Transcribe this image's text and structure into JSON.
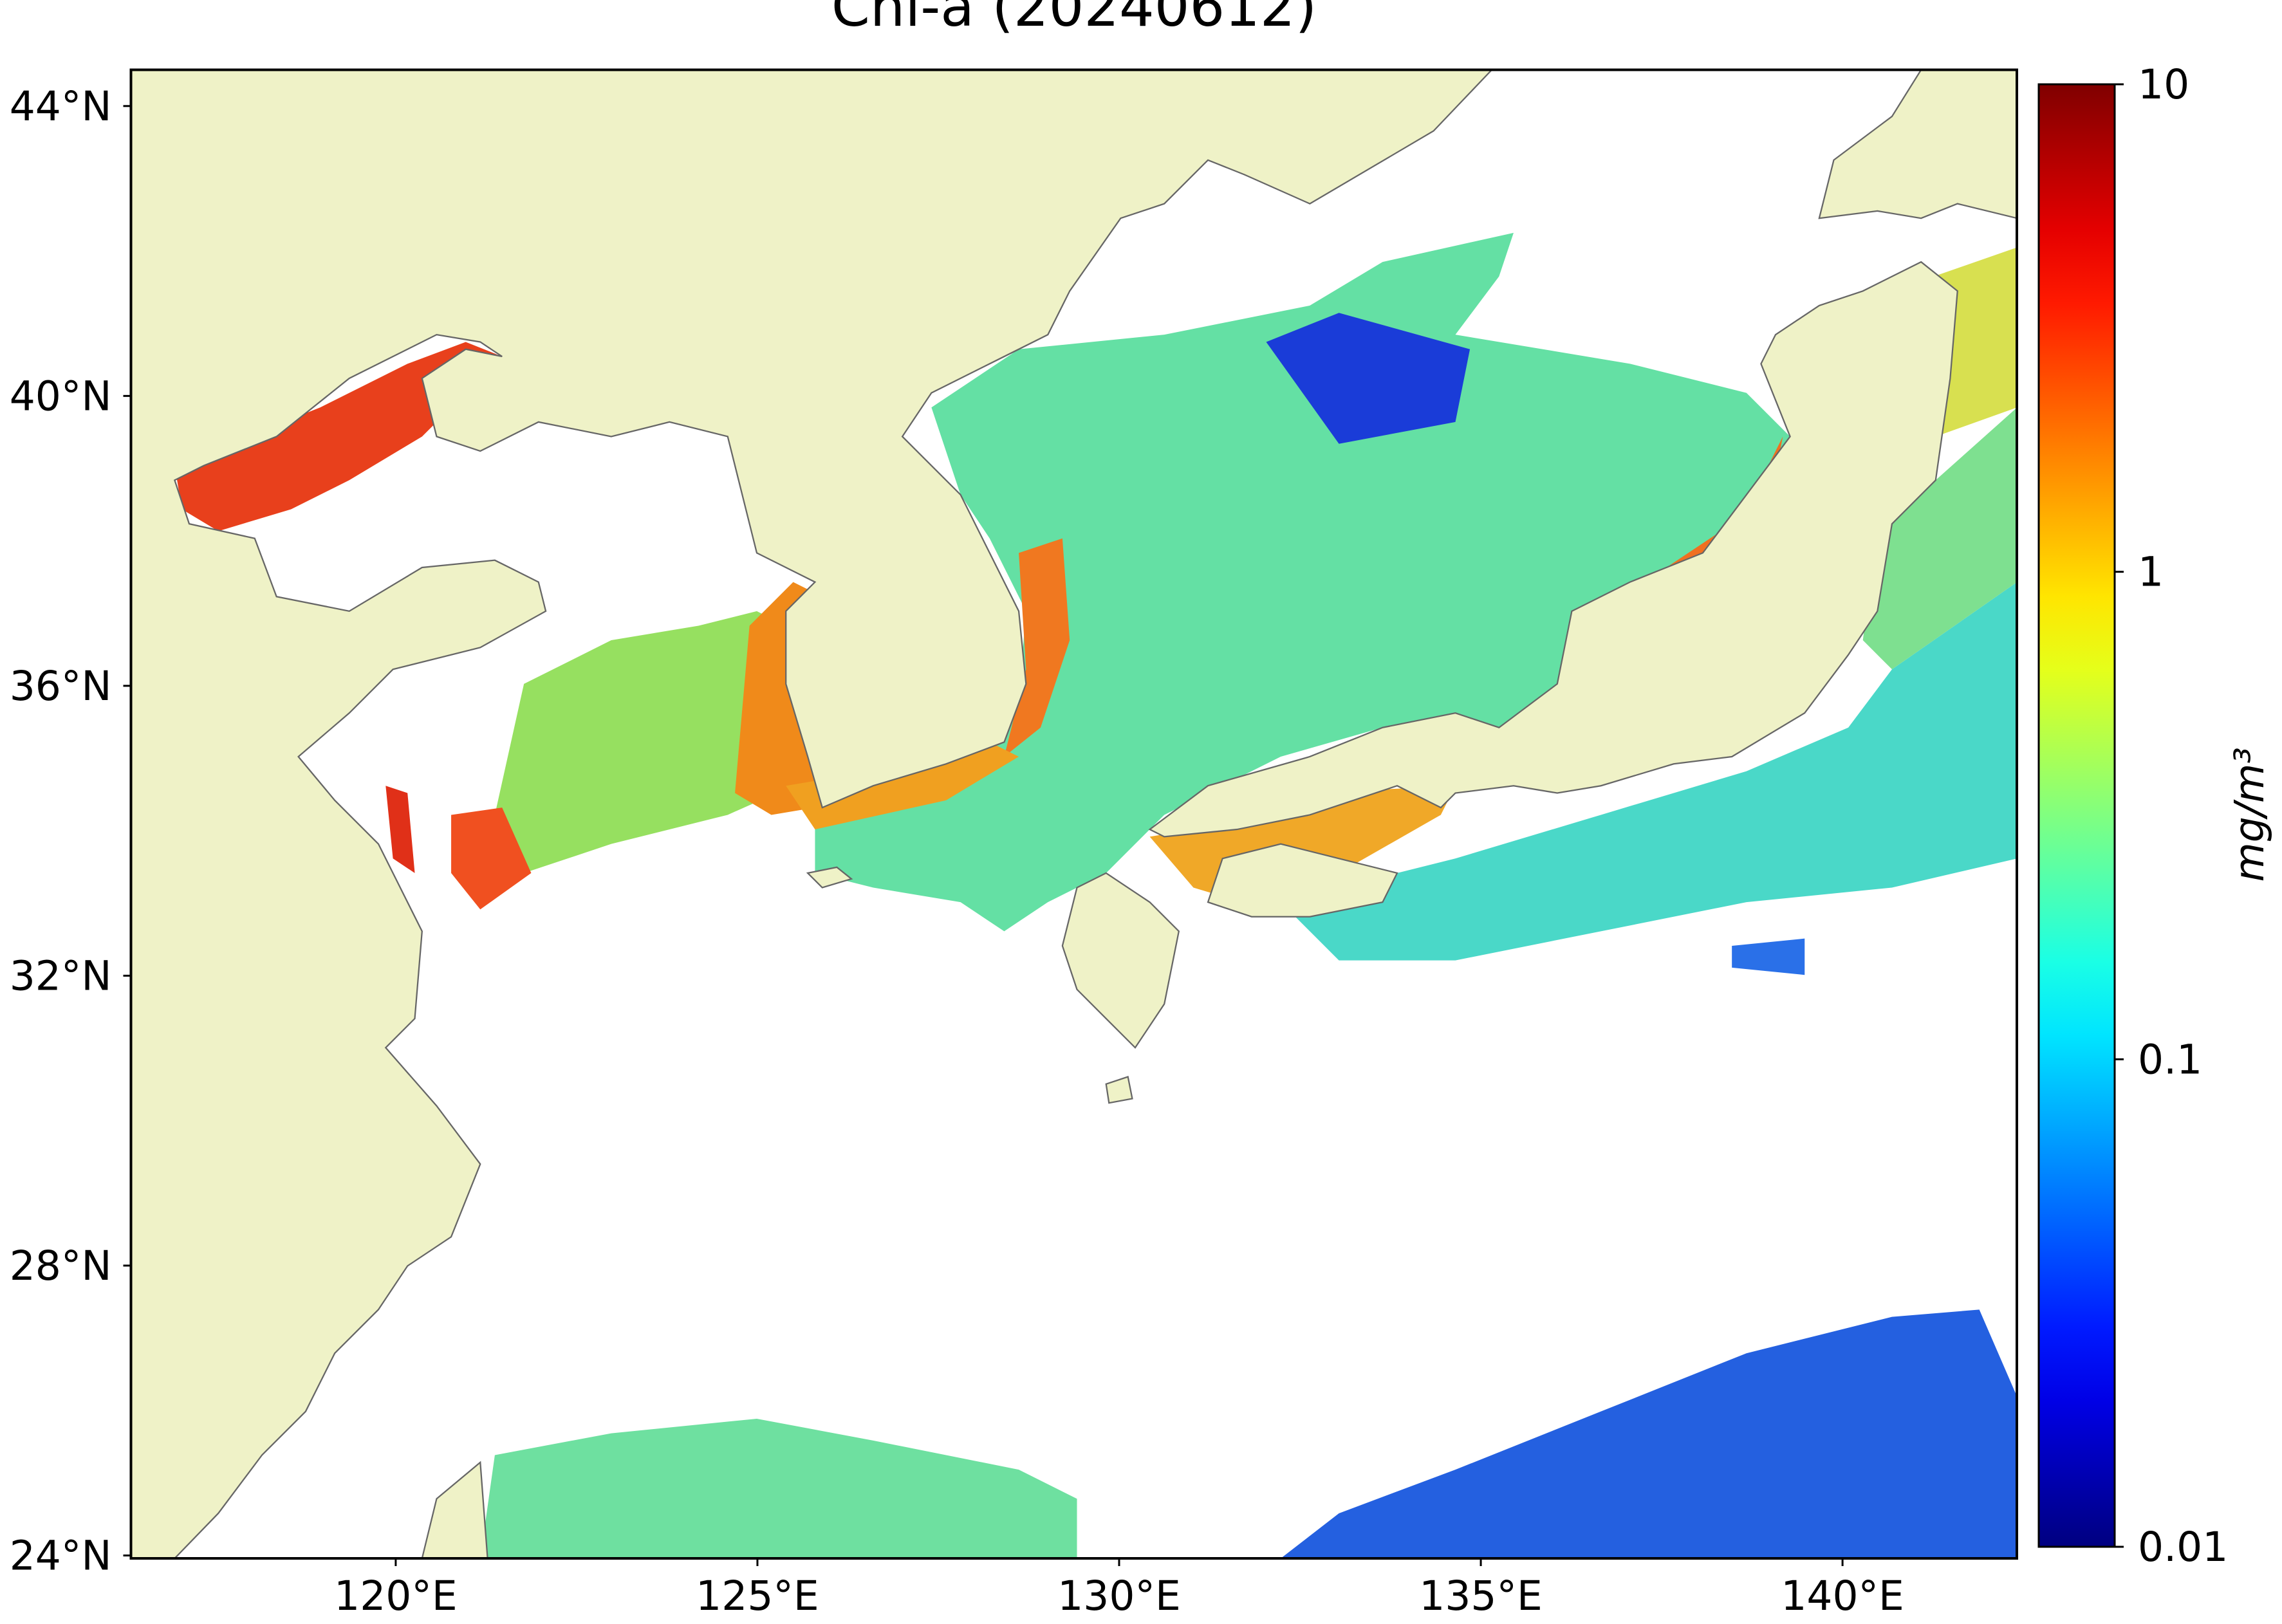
{
  "map": {
    "title": "Chl-a (20240612)",
    "xlim": [
      116.34,
      142.41
    ],
    "ylim": [
      23.96,
      44.5
    ],
    "xticks": [
      {
        "value": 120,
        "label": "120°E"
      },
      {
        "value": 125,
        "label": "125°E"
      },
      {
        "value": 130,
        "label": "130°E"
      },
      {
        "value": 135,
        "label": "135°E"
      },
      {
        "value": 140,
        "label": "140°E"
      }
    ],
    "yticks": [
      {
        "value": 24,
        "label": "24°N"
      },
      {
        "value": 28,
        "label": "28°N"
      },
      {
        "value": 32,
        "label": "32°N"
      },
      {
        "value": 36,
        "label": "36°N"
      },
      {
        "value": 40,
        "label": "40°N"
      },
      {
        "value": 44,
        "label": "44°N"
      }
    ],
    "colorbar": {
      "label": "mg/m³",
      "scale": "log",
      "colormap": "jet",
      "lim": [
        0.01,
        10
      ],
      "ticks": [
        0.01,
        0.1,
        1,
        10
      ]
    }
  }
}
